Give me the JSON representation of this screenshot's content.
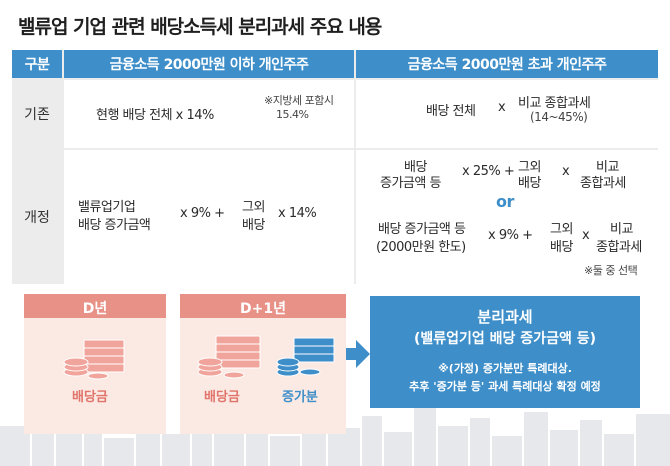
{
  "title": "밸류업 기업 관련 배당소득세 분리과세 주요 내용",
  "table": {
    "header_category": "구분",
    "header_left": "금융소득 2000만원 이하 개인주주",
    "header_right": "금융소득 2000만원 초과 개인주주",
    "row1": {
      "label": "기존",
      "left_main": "현행 배당 전체 x 14%",
      "left_note_line1": "※지방세 포함시",
      "left_note_line2": "15.4%",
      "right_a": "배당 전체",
      "right_x": "x",
      "right_b_line1": "비교 종합과세",
      "right_b_line2": "(14~45%)"
    },
    "row2": {
      "label": "개정",
      "left_a_line1": "밸류업기업",
      "left_a_line2": "배당 증가금액",
      "left_rate": "x 9% +",
      "left_b_line1": "그외",
      "left_b_line2": "배당",
      "left_rate2": "x 14%",
      "opt1_a_line1": "배당",
      "opt1_a_line2": "증가금액 등",
      "opt1_rate": "x 25% +",
      "opt1_b_line1": "그외",
      "opt1_b_line2": "배당",
      "opt1_x": "x",
      "opt1_c_line1": "비교",
      "opt1_c_line2": "종합과세",
      "or": "or",
      "opt2_a_line1": "배당 증가금액 등",
      "opt2_a_line2": "(2000만원 한도)",
      "opt2_rate": "x 9% +",
      "opt2_b_line1": "그외",
      "opt2_b_line2": "배당",
      "opt2_x": "x",
      "opt2_c_line1": "비교",
      "opt2_c_line2": "종합과세",
      "note": "※둘 중 선택"
    }
  },
  "bottom": {
    "box1_title": "D년",
    "box1_label": "배당금",
    "box2_title": "D+1년",
    "box2_label1": "배당금",
    "box2_label2": "증가분",
    "result_title": "분리과세",
    "result_subtitle": "(밸류업기업 배당 증가금액 등)",
    "result_note1": "※(가정) 증가분만 특례대상.",
    "result_note2": "추후 '증가분 등' 과세 특례대상 확정 예정"
  },
  "colors": {
    "accent_blue": "#3d8ec9",
    "accent_pink": "#e79187",
    "pink_bg": "#fbe9e4"
  }
}
